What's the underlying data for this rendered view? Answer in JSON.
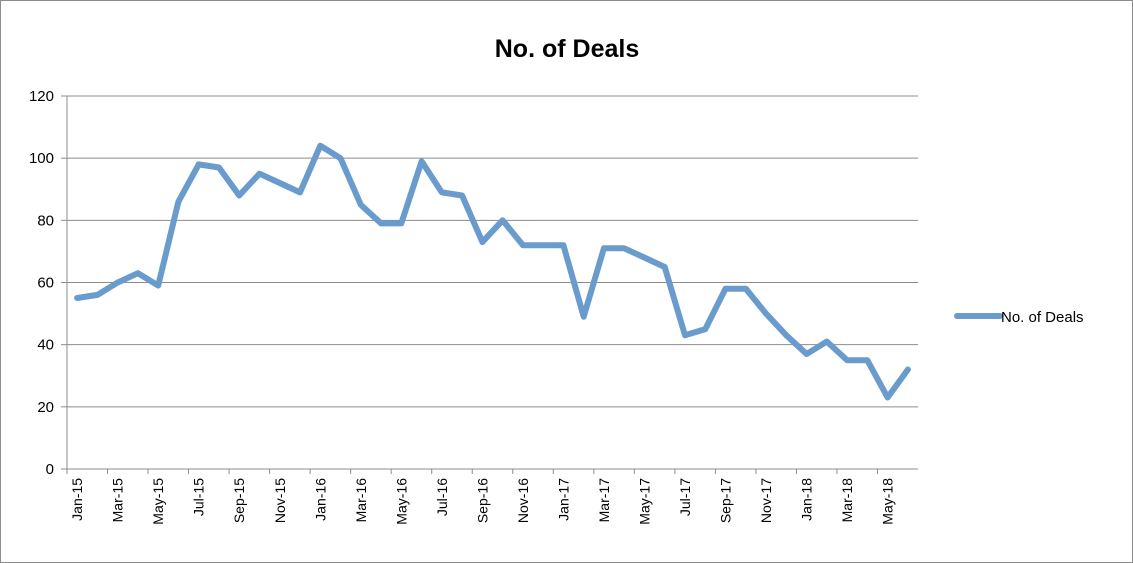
{
  "chart_data": {
    "type": "line",
    "title": "No. of Deals",
    "xlabel": "",
    "ylabel": "",
    "ylim": [
      0,
      120
    ],
    "yticks": [
      0,
      20,
      40,
      60,
      80,
      100,
      120
    ],
    "grid": true,
    "legend_position": "right",
    "line_color": "#6a9bcd",
    "x": [
      "Jan-15",
      "Feb-15",
      "Mar-15",
      "Apr-15",
      "May-15",
      "Jun-15",
      "Jul-15",
      "Aug-15",
      "Sep-15",
      "Oct-15",
      "Nov-15",
      "Dec-15",
      "Jan-16",
      "Feb-16",
      "Mar-16",
      "Apr-16",
      "May-16",
      "Jun-16",
      "Jul-16",
      "Aug-16",
      "Sep-16",
      "Oct-16",
      "Nov-16",
      "Dec-16",
      "Jan-17",
      "Feb-17",
      "Mar-17",
      "Apr-17",
      "May-17",
      "Jun-17",
      "Jul-17",
      "Aug-17",
      "Sep-17",
      "Oct-17",
      "Nov-17",
      "Dec-17",
      "Jan-18",
      "Feb-18",
      "Mar-18",
      "Apr-18",
      "May-18",
      "Jun-18"
    ],
    "xtick_labels": [
      "Jan-15",
      "Mar-15",
      "May-15",
      "Jul-15",
      "Sep-15",
      "Nov-15",
      "Jan-16",
      "Mar-16",
      "May-16",
      "Jul-16",
      "Sep-16",
      "Nov-16",
      "Jan-17",
      "Mar-17",
      "May-17",
      "Jul-17",
      "Sep-17",
      "Nov-17",
      "Jan-18",
      "Mar-18",
      "May-18"
    ],
    "series": [
      {
        "name": "No. of Deals",
        "values": [
          55,
          56,
          60,
          63,
          59,
          86,
          98,
          97,
          88,
          95,
          92,
          89,
          104,
          100,
          85,
          79,
          79,
          99,
          89,
          88,
          73,
          80,
          72,
          72,
          72,
          49,
          71,
          71,
          68,
          65,
          43,
          45,
          58,
          58,
          50,
          43,
          37,
          41,
          35,
          35,
          23,
          32
        ]
      }
    ]
  }
}
